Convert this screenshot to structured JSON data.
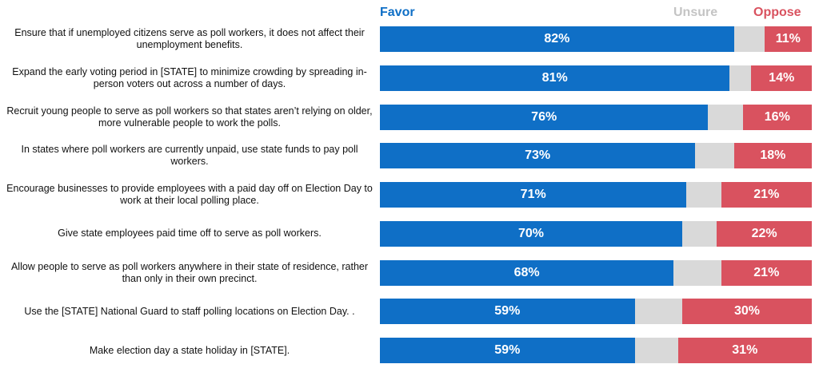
{
  "chart_data": {
    "type": "bar",
    "orientation": "horizontal",
    "stacked": true,
    "title": "",
    "xlabel": "",
    "ylabel": "",
    "xlim": [
      0,
      100
    ],
    "grid": false,
    "legend_placement": "top",
    "legend": {
      "favor": "Favor",
      "unsure": "Unsure",
      "oppose": "Oppose"
    },
    "colors": {
      "favor": "#0f6fc6",
      "unsure": "#d9d9d9",
      "oppose": "#d9525f"
    },
    "categories": [
      "Ensure that if unemployed citizens serve as poll workers, it does not affect their unemployment benefits.",
      "Expand the early voting period in [STATE] to minimize crowding by spreading in-person voters out across a number of days.",
      "Recruit young people to serve as poll workers so that states aren’t relying on older, more vulnerable people to work the polls.",
      "In states where poll workers are currently unpaid, use state funds to pay poll workers.",
      "Encourage businesses to provide employees with a paid day off on Election Day to work at their local polling place.",
      "Give state employees paid time off to serve as poll workers.",
      "Allow people to serve as poll workers anywhere in their state of residence, rather than only in their own precinct.",
      "Use the [STATE] National Guard to staff polling locations on Election Day. .",
      "Make election day a state holiday in [STATE]."
    ],
    "series": [
      {
        "key": "favor",
        "values": [
          82,
          81,
          76,
          73,
          71,
          70,
          68,
          59,
          59
        ],
        "labels": [
          "82%",
          "81%",
          "76%",
          "73%",
          "71%",
          "70%",
          "68%",
          "59%",
          "59%"
        ]
      },
      {
        "key": "unsure",
        "values": [
          7,
          5,
          8,
          9,
          8,
          8,
          11,
          11,
          10
        ]
      },
      {
        "key": "oppose",
        "values": [
          11,
          14,
          16,
          18,
          21,
          22,
          21,
          30,
          31
        ],
        "labels": [
          "11%",
          "14%",
          "16%",
          "18%",
          "21%",
          "22%",
          "21%",
          "30%",
          "31%"
        ]
      }
    ]
  }
}
